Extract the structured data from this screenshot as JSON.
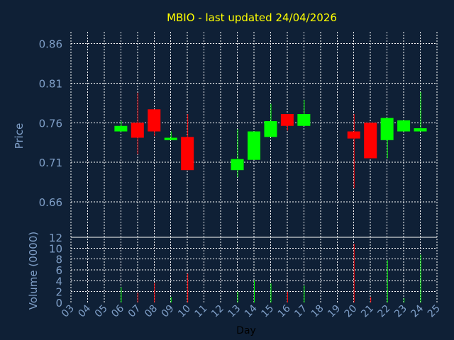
{
  "colors": {
    "background": "#0f2036",
    "title": "#ffff00",
    "axis_text": "#7f9fc8",
    "day_label": "#000000",
    "grid": "#ffffff",
    "up": "#00ff00",
    "down": "#ff0000"
  },
  "chart_data": {
    "type": "candlestick",
    "title": "MBIO - last updated 24/04/2026",
    "xlabel": "Day",
    "ylabel_price": "Price",
    "ylabel_volume": "Volume (0000)",
    "x_ticks": [
      "03",
      "04",
      "05",
      "06",
      "07",
      "08",
      "09",
      "10",
      "11",
      "12",
      "13",
      "14",
      "15",
      "16",
      "17",
      "18",
      "19",
      "20",
      "21",
      "22",
      "23",
      "24",
      "25"
    ],
    "price_ticks": [
      "0.86",
      "0.81",
      "0.76",
      "0.71",
      "0.66"
    ],
    "price_range": [
      0.615,
      0.875
    ],
    "volume_ticks": [
      "0",
      "2",
      "4",
      "6",
      "8",
      "10",
      "12"
    ],
    "volume_range": [
      0,
      12
    ],
    "grid": true,
    "candles": [
      {
        "day": "06",
        "open": 0.749,
        "high": 0.762,
        "low": 0.749,
        "close": 0.756
      },
      {
        "day": "07",
        "open": 0.76,
        "high": 0.798,
        "low": 0.72,
        "close": 0.741
      },
      {
        "day": "08",
        "open": 0.777,
        "high": 0.777,
        "low": 0.743,
        "close": 0.749
      },
      {
        "day": "09",
        "open": 0.738,
        "high": 0.749,
        "low": 0.738,
        "close": 0.741
      },
      {
        "day": "10",
        "open": 0.742,
        "high": 0.771,
        "low": 0.7,
        "close": 0.7
      },
      {
        "day": "13",
        "open": 0.7,
        "high": 0.752,
        "low": 0.691,
        "close": 0.714
      },
      {
        "day": "14",
        "open": 0.713,
        "high": 0.749,
        "low": 0.713,
        "close": 0.749
      },
      {
        "day": "15",
        "open": 0.742,
        "high": 0.784,
        "low": 0.742,
        "close": 0.762
      },
      {
        "day": "16",
        "open": 0.771,
        "high": 0.771,
        "low": 0.75,
        "close": 0.756
      },
      {
        "day": "17",
        "open": 0.756,
        "high": 0.789,
        "low": 0.756,
        "close": 0.771
      },
      {
        "day": "20",
        "open": 0.749,
        "high": 0.771,
        "low": 0.677,
        "close": 0.74
      },
      {
        "day": "21",
        "open": 0.76,
        "high": 0.76,
        "low": 0.715,
        "close": 0.715
      },
      {
        "day": "22",
        "open": 0.738,
        "high": 0.766,
        "low": 0.715,
        "close": 0.766
      },
      {
        "day": "23",
        "open": 0.749,
        "high": 0.763,
        "low": 0.749,
        "close": 0.763
      },
      {
        "day": "24",
        "open": 0.749,
        "high": 0.799,
        "low": 0.749,
        "close": 0.753
      }
    ],
    "volume": [
      {
        "day": "06",
        "value": 2.8,
        "direction": "up"
      },
      {
        "day": "07",
        "value": 1.8,
        "direction": "down"
      },
      {
        "day": "08",
        "value": 3.6,
        "direction": "down"
      },
      {
        "day": "09",
        "value": 1.0,
        "direction": "up"
      },
      {
        "day": "10",
        "value": 5.3,
        "direction": "down"
      },
      {
        "day": "13",
        "value": 2.0,
        "direction": "up"
      },
      {
        "day": "14",
        "value": 4.1,
        "direction": "up"
      },
      {
        "day": "15",
        "value": 3.5,
        "direction": "up"
      },
      {
        "day": "16",
        "value": 2.0,
        "direction": "down"
      },
      {
        "day": "17",
        "value": 3.1,
        "direction": "up"
      },
      {
        "day": "20",
        "value": 10.8,
        "direction": "down"
      },
      {
        "day": "21",
        "value": 1.0,
        "direction": "down"
      },
      {
        "day": "22",
        "value": 7.8,
        "direction": "up"
      },
      {
        "day": "23",
        "value": 0.8,
        "direction": "up"
      },
      {
        "day": "24",
        "value": 8.8,
        "direction": "up"
      }
    ]
  }
}
